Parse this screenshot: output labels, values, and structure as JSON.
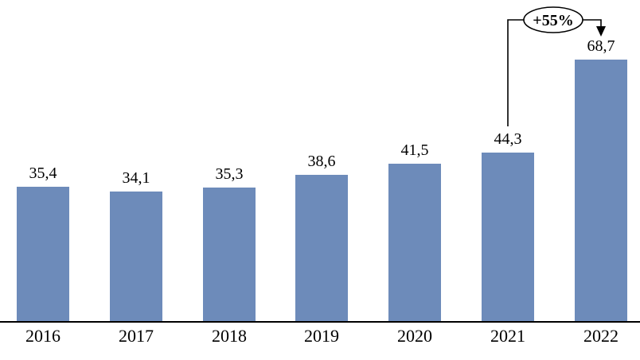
{
  "chart_data": {
    "type": "bar",
    "categories": [
      "2016",
      "2017",
      "2018",
      "2019",
      "2020",
      "2021",
      "2022"
    ],
    "values": [
      35.4,
      34.1,
      35.3,
      38.6,
      41.5,
      44.3,
      68.7
    ],
    "value_labels": [
      "35,4",
      "34,1",
      "35,3",
      "38,6",
      "41,5",
      "44,3",
      "68,7"
    ],
    "title": "",
    "xlabel": "",
    "ylabel": "",
    "ylim": [
      0,
      75
    ],
    "grid": false,
    "legend": null,
    "bar_color": "#6d8bba",
    "axis_color": "#000000",
    "annotation": {
      "text": "+55%",
      "from_category": "2021",
      "to_category": "2022"
    }
  }
}
